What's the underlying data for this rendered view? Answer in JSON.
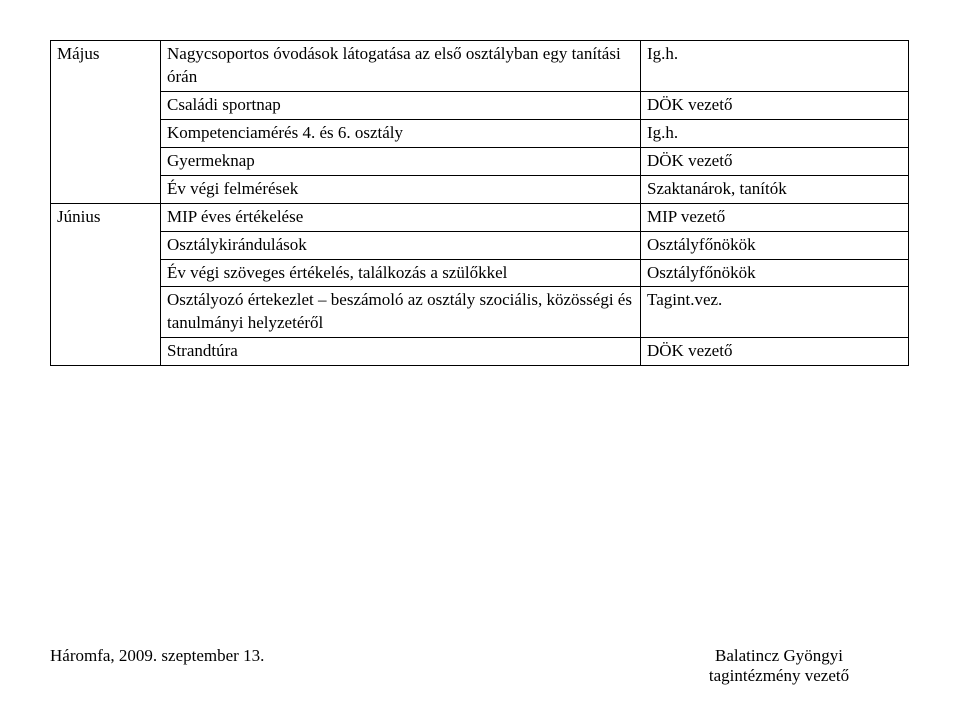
{
  "table": {
    "rows": [
      {
        "left": "Május",
        "mid": "Nagycsoportos óvodások látogatása az első osztályban egy tanítási órán",
        "right": "Ig.h.",
        "left_rowspan": 5
      },
      {
        "mid": "Családi sportnap",
        "right": "DÖK vezető"
      },
      {
        "mid": "Kompetenciamérés 4. és 6. osztály",
        "right": "Ig.h."
      },
      {
        "mid": "Gyermeknap",
        "right": "DÖK vezető"
      },
      {
        "mid": "Év végi felmérések",
        "right": "Szaktanárok, tanítók"
      },
      {
        "left": "Június",
        "mid": "MIP éves értékelése",
        "right": "MIP vezető",
        "left_rowspan": 5
      },
      {
        "mid": "Osztálykirándulások",
        "right": "Osztályfőnökök"
      },
      {
        "mid": "Év végi szöveges értékelés, találkozás a szülőkkel",
        "right": "Osztályfőnökök"
      },
      {
        "mid": "Osztályozó értekezlet – beszámoló az osztály szociális, közösségi és tanulmányi helyzetéről",
        "right": "Tagint.vez."
      },
      {
        "mid": "Strandtúra",
        "right": "DÖK vezető"
      }
    ]
  },
  "footer": {
    "left": "Háromfa, 2009. szeptember 13.",
    "right_name": "Balatincz Gyöngyi",
    "right_title": "tagintézmény vezető"
  }
}
